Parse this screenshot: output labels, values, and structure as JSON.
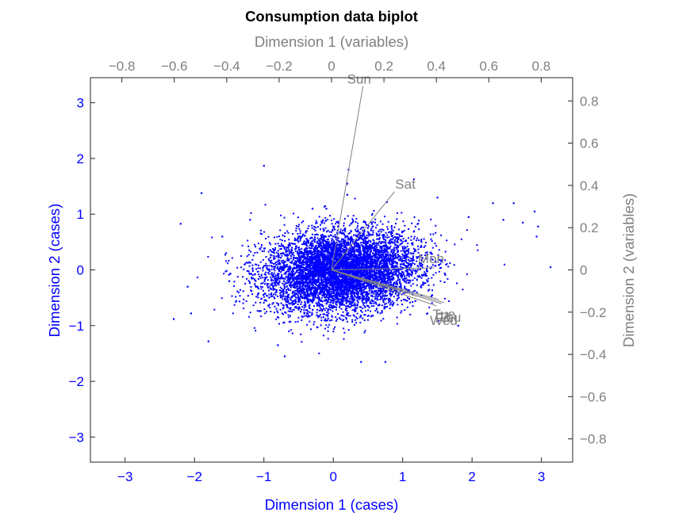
{
  "chart_data": {
    "type": "scatter",
    "title": "Consumption data biplot",
    "xlabel": "Dimension 1 (cases)",
    "ylabel": "Dimension 2 (cases)",
    "x2label": "Dimension 1 (variables)",
    "y2label": "Dimension 2 (variables)",
    "xlim": [
      -3.5,
      3.45
    ],
    "ylim": [
      -3.45,
      3.45
    ],
    "x2lim": [
      -0.92,
      0.92
    ],
    "y2lim": [
      -0.91,
      0.91
    ],
    "xticks": [
      -3,
      -2,
      -1,
      0,
      1,
      2,
      3
    ],
    "yticks": [
      -3,
      -2,
      -1,
      0,
      1,
      2,
      3
    ],
    "x2ticks": [
      -0.8,
      -0.6,
      -0.4,
      -0.2,
      0,
      0.2,
      0.4,
      0.6,
      0.8
    ],
    "y2ticks": [
      -0.8,
      -0.6,
      -0.4,
      -0.2,
      0,
      0.2,
      0.4,
      0.6,
      0.8
    ],
    "grid": false,
    "colors": {
      "cases": "#0000ff",
      "variables": "#808080",
      "title": "#000000",
      "frame": "#262626"
    },
    "cases": [
      [
        0.2,
        1.55
      ],
      [
        0.22,
        1.8
      ],
      [
        -1.0,
        1.87
      ],
      [
        -1.9,
        1.38
      ],
      [
        -2.2,
        0.83
      ],
      [
        -1.6,
        0.6
      ],
      [
        -2.1,
        -0.3
      ],
      [
        -2.3,
        -0.88
      ],
      [
        -2.05,
        -0.78
      ],
      [
        -1.8,
        -1.28
      ],
      [
        -0.8,
        -1.35
      ],
      [
        -0.7,
        -1.55
      ],
      [
        0.4,
        -1.65
      ],
      [
        0.75,
        -1.65
      ],
      [
        1.8,
        -1.0
      ],
      [
        2.6,
        1.2
      ],
      [
        2.73,
        0.85
      ],
      [
        2.9,
        1.05
      ],
      [
        2.95,
        0.78
      ],
      [
        2.93,
        0.6
      ],
      [
        3.13,
        0.05
      ],
      [
        2.3,
        1.2
      ],
      [
        -1.2,
        0.9
      ],
      [
        -0.3,
        1.1
      ],
      [
        1.5,
        1.3
      ],
      [
        0.2,
        1.35
      ],
      [
        -0.1,
        1.1
      ],
      [
        1.95,
        0.95
      ],
      [
        2.45,
        0.9
      ],
      [
        -1.5,
        -0.2
      ]
    ],
    "cloud": {
      "center": [
        0.1,
        -0.02
      ],
      "spread_x": 0.55,
      "spread_y": 0.36,
      "count": 9000
    },
    "variables": [
      {
        "name": "Sun",
        "x": 0.12,
        "y": 0.87
      },
      {
        "name": "Sat",
        "x": 0.24,
        "y": 0.37
      },
      {
        "name": "Mon",
        "x": 0.39,
        "y": 0.01
      },
      {
        "name": "Tue",
        "x": 0.41,
        "y": -0.14
      },
      {
        "name": "Thu",
        "x": 0.43,
        "y": -0.155
      },
      {
        "name": "Fri",
        "x": 0.42,
        "y": -0.16
      },
      {
        "name": "Wed",
        "x": 0.4,
        "y": -0.17
      }
    ]
  }
}
